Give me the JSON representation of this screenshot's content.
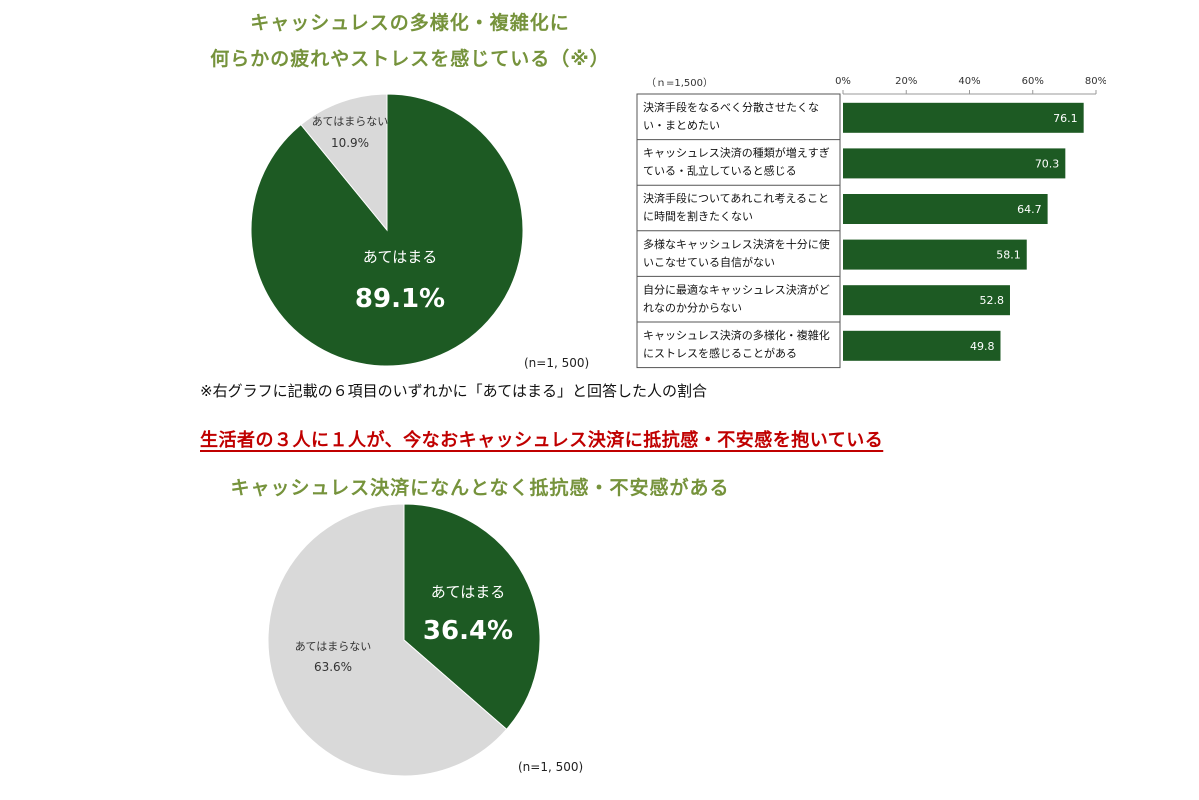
{
  "pie1": {
    "title_line1": "キャッシュレスの多様化・複雑化に",
    "title_line2": "何らかの疲れやストレスを感じている（※）",
    "n_label": "(n=1, 500)",
    "footnote": "※右グラフに記載の６項目のいずれかに「あてはまる」と回答した人の割合"
  },
  "bar": {
    "n_label": "（ｎ=1,500）"
  },
  "headline": "生活者の３人に１人が、今なおキャッシュレス決済に抵抗感・不安感を抱いている",
  "pie2": {
    "title": "キャッシュレス決済になんとなく抵抗感・不安感がある",
    "n_label": "(n=1, 500)"
  },
  "colors": {
    "green": "#1d5a23",
    "gray": "#d9d9d9",
    "title_green": "#76933c",
    "headline_red": "#c00000"
  },
  "chart_data": [
    {
      "type": "pie",
      "slices": [
        {
          "label": "あてはまる",
          "value": 89.1,
          "value_label": "89.1%",
          "color": "#1d5a23"
        },
        {
          "label": "あてはまらない",
          "value": 10.9,
          "value_label": "10.9%",
          "color": "#d9d9d9"
        }
      ]
    },
    {
      "type": "bar",
      "orientation": "horizontal",
      "categories": [
        [
          "決済手段をなるべく分散させたくな",
          "い・まとめたい"
        ],
        [
          "キャッシュレス決済の種類が増えすぎ",
          "ている・乱立していると感じる"
        ],
        [
          "決済手段についてあれこれ考えること",
          "に時間を割きたくない"
        ],
        [
          "多様なキャッシュレス決済を十分に使",
          "いこなせている自信がない"
        ],
        [
          "自分に最適なキャッシュレス決済がど",
          "れなのか分からない"
        ],
        [
          "キャッシュレス決済の多様化・複雑化",
          "にストレスを感じることがある"
        ]
      ],
      "values": [
        76.1,
        70.3,
        64.7,
        58.1,
        52.8,
        49.8
      ],
      "xlim": [
        0,
        80
      ],
      "xticks": [
        "0%",
        "20%",
        "40%",
        "60%",
        "80%"
      ]
    },
    {
      "type": "pie",
      "slices": [
        {
          "label": "あてはまる",
          "value": 36.4,
          "value_label": "36.4%",
          "color": "#1d5a23"
        },
        {
          "label": "あてはまらない",
          "value": 63.6,
          "value_label": "63.6%",
          "color": "#d9d9d9"
        }
      ]
    }
  ]
}
